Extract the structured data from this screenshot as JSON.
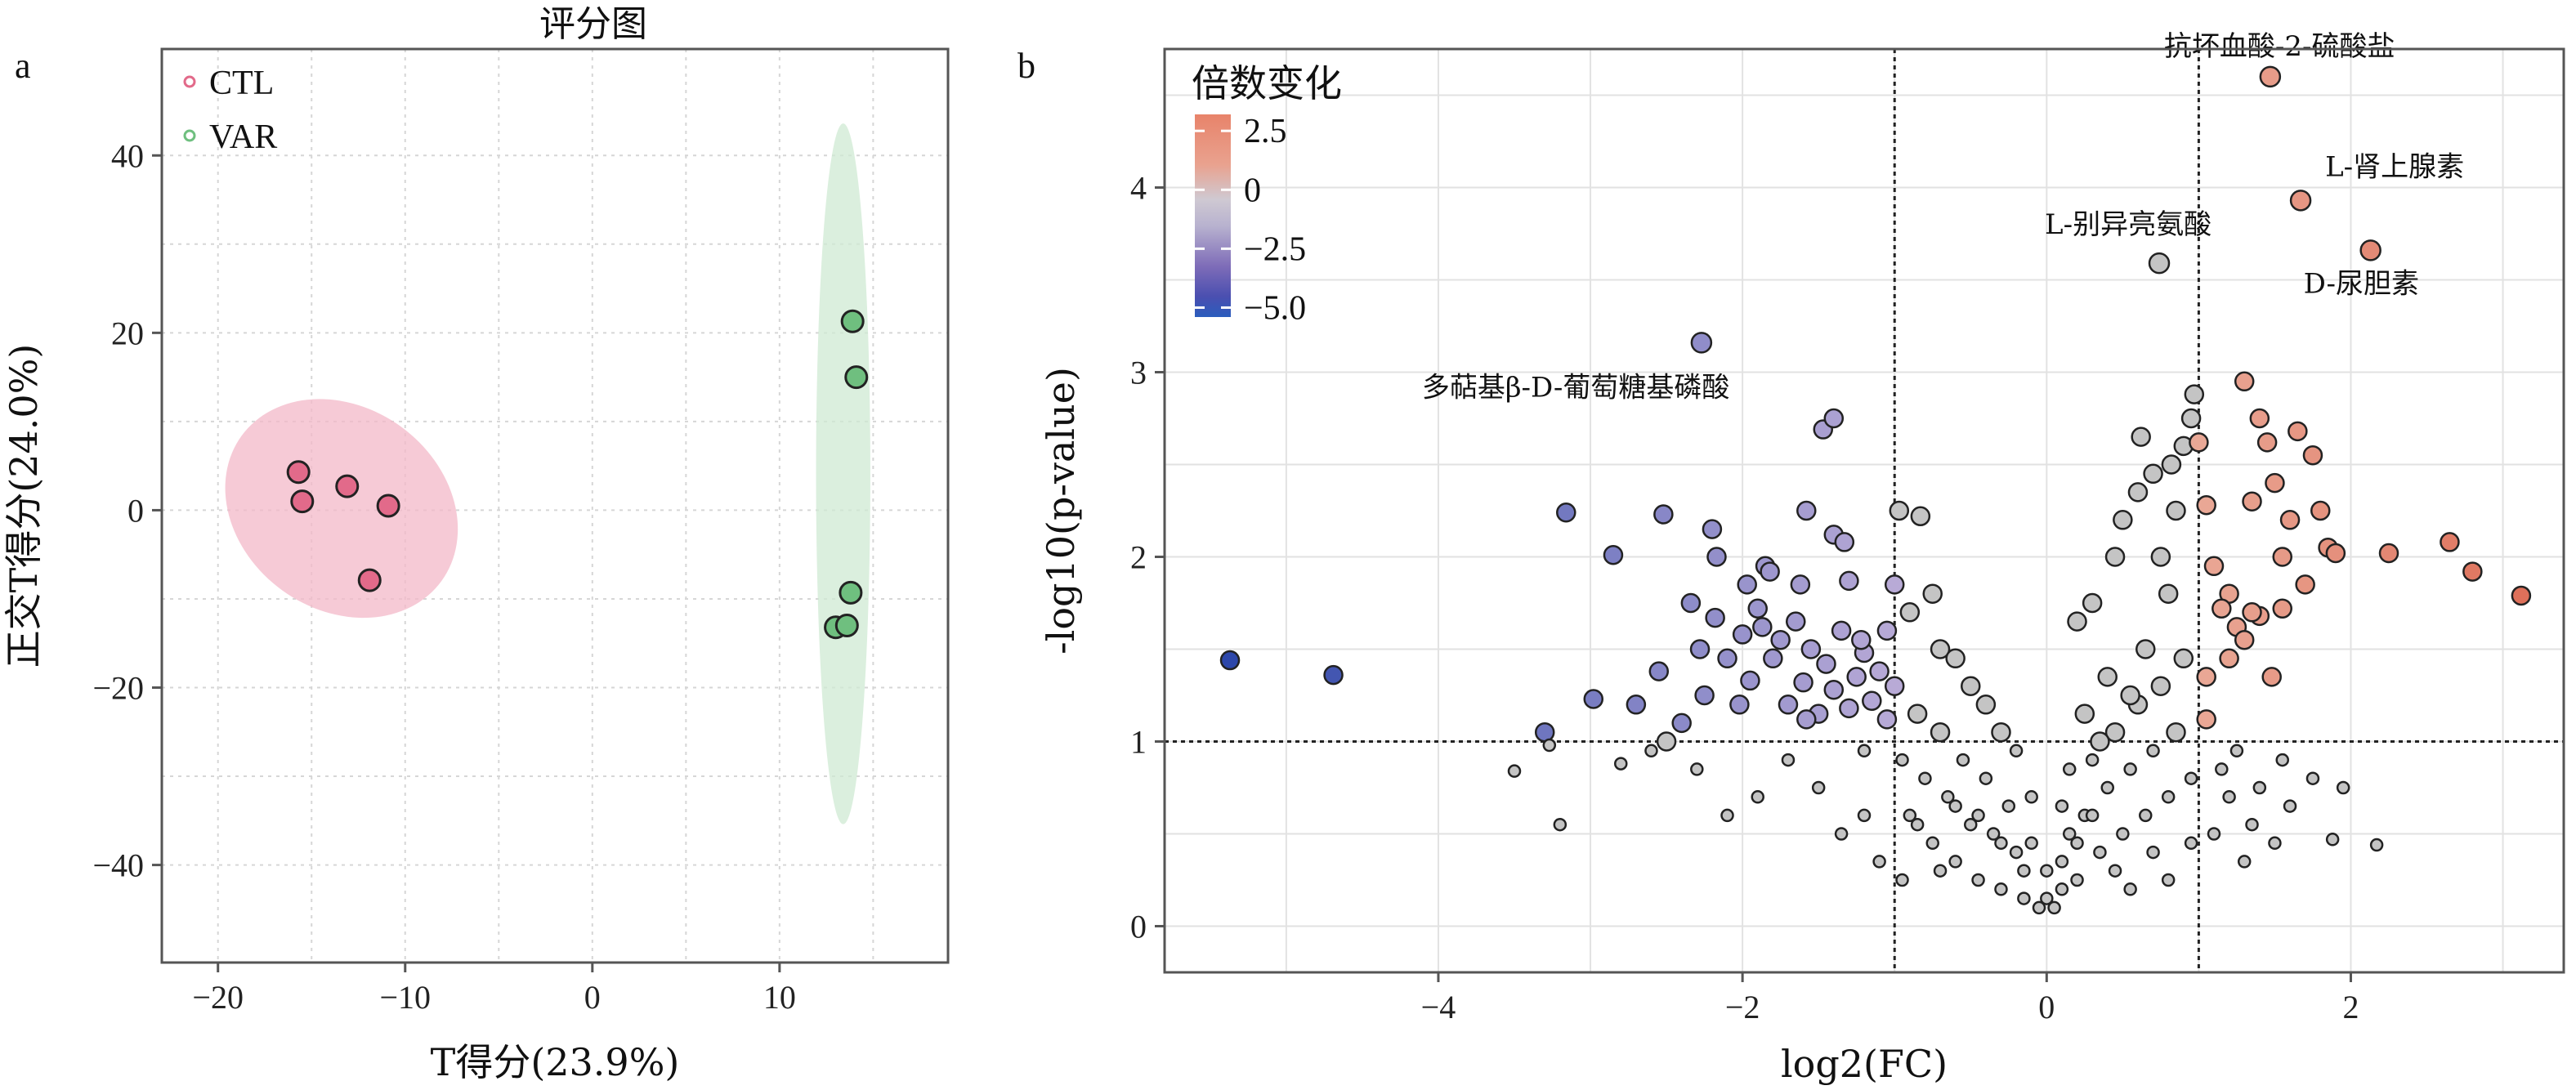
{
  "figure": {
    "panel_a_letter": "a",
    "panel_b_letter": "b"
  },
  "chart_data": [
    {
      "type": "scatter",
      "title": "评分图",
      "xlabel": "T得分(23.9%)",
      "ylabel": "正交T得分(24.0%)",
      "xlim": [
        -23,
        19
      ],
      "ylim": [
        -51,
        52
      ],
      "xticks": [
        -20,
        -10,
        0,
        10
      ],
      "yticks": [
        -40,
        -20,
        0,
        20,
        40
      ],
      "grid": true,
      "legend_position": "top-left",
      "series": [
        {
          "name": "CTL",
          "color": "#e26a8a",
          "ellipse_color": "#f3b8c8",
          "points": [
            [
              -15.7,
              4.3
            ],
            [
              -15.5,
              1.0
            ],
            [
              -13.1,
              2.7
            ],
            [
              -11.9,
              -7.9
            ],
            [
              -10.9,
              0.5
            ]
          ],
          "ellipse": {
            "cx": -13.4,
            "cy": 0.2,
            "rx": 6.6,
            "ry": 11.4,
            "angle_deg": 36
          }
        },
        {
          "name": "VAR",
          "color": "#6fbf7f",
          "ellipse_color": "#cfead3",
          "points": [
            [
              13.9,
              21.3
            ],
            [
              14.1,
              15.0
            ],
            [
              13.8,
              -9.3
            ],
            [
              13.0,
              -13.2
            ],
            [
              13.6,
              -13.0
            ]
          ],
          "ellipse": {
            "cx": 13.4,
            "cy": 4.1,
            "rx": 1.45,
            "ry": 39.5,
            "angle_deg": 0
          }
        }
      ]
    },
    {
      "type": "scatter",
      "title": "",
      "xlabel": "log2(FC)",
      "ylabel": "-log10(p-value)",
      "xlim": [
        -5.8,
        3.4
      ],
      "ylim": [
        -0.25,
        4.75
      ],
      "xticks": [
        -4,
        -2,
        0,
        2
      ],
      "yticks": [
        0,
        1,
        2,
        3,
        4
      ],
      "grid": true,
      "thresholds": {
        "x": [
          -1,
          1
        ],
        "y": 1
      },
      "legend": {
        "title": "倍数变化",
        "labels": [
          "2.5",
          "0",
          "−2.5",
          "−5.0"
        ],
        "values": [
          2.5,
          0,
          -2.5,
          -5.0
        ],
        "position": "top-left",
        "gradient_colors": [
          "#e8836a",
          "#e9a28f",
          "#cfc9d2",
          "#b8b2cf",
          "#7e6cb8",
          "#4a4fb0",
          "#2a5dbd"
        ]
      },
      "annotations": [
        {
          "text": "抗坏血酸-2-硫酸盐",
          "x": 1.47,
          "y": 4.6
        },
        {
          "text": "L-肾上腺素",
          "x": 1.67,
          "y": 3.93
        },
        {
          "text": "L-别异亮氨酸",
          "x": 0.74,
          "y": 3.59
        },
        {
          "text": "D-尿胆素",
          "x": 2.13,
          "y": 3.66
        },
        {
          "text": "多萜基β-D-葡萄糖基磷酸",
          "x": -2.27,
          "y": 3.16
        }
      ],
      "labeled_points": [
        {
          "x": 1.47,
          "y": 4.6,
          "fc": 1.47
        },
        {
          "x": 1.67,
          "y": 3.93,
          "fc": 1.67
        },
        {
          "x": 0.74,
          "y": 3.59,
          "fc": 0.74
        },
        {
          "x": 2.13,
          "y": 3.66,
          "fc": 2.13
        },
        {
          "x": -2.27,
          "y": 3.16,
          "fc": -2.27
        }
      ],
      "points": [
        [
          -5.37,
          1.44
        ],
        [
          -4.69,
          1.36
        ],
        [
          -3.16,
          2.24
        ],
        [
          -2.85,
          2.01
        ],
        [
          -2.52,
          2.23
        ],
        [
          -2.2,
          2.15
        ],
        [
          -2.17,
          2.0
        ],
        [
          -1.97,
          1.85
        ],
        [
          -1.85,
          1.95
        ],
        [
          -1.82,
          1.92
        ],
        [
          -1.62,
          1.85
        ],
        [
          -1.58,
          2.25
        ],
        [
          -1.47,
          2.69
        ],
        [
          -1.4,
          2.75
        ],
        [
          -1.4,
          2.12
        ],
        [
          -1.33,
          2.08
        ],
        [
          -1.3,
          1.87
        ],
        [
          -3.3,
          1.05
        ],
        [
          -2.98,
          1.23
        ],
        [
          -2.7,
          1.2
        ],
        [
          -2.55,
          1.38
        ],
        [
          -2.4,
          1.1
        ],
        [
          -2.28,
          1.5
        ],
        [
          -2.25,
          1.25
        ],
        [
          -2.18,
          1.67
        ],
        [
          -2.1,
          1.45
        ],
        [
          -2.0,
          1.58
        ],
        [
          -1.95,
          1.33
        ],
        [
          -1.9,
          1.72
        ],
        [
          -1.8,
          1.45
        ],
        [
          -1.75,
          1.55
        ],
        [
          -1.7,
          1.2
        ],
        [
          -1.65,
          1.65
        ],
        [
          -1.6,
          1.32
        ],
        [
          -1.55,
          1.5
        ],
        [
          -1.5,
          1.15
        ],
        [
          -1.45,
          1.42
        ],
        [
          -1.4,
          1.28
        ],
        [
          -1.35,
          1.6
        ],
        [
          -1.3,
          1.18
        ],
        [
          -1.25,
          1.35
        ],
        [
          -1.2,
          1.48
        ],
        [
          -1.15,
          1.22
        ],
        [
          -1.1,
          1.38
        ],
        [
          -1.05,
          1.12
        ],
        [
          -2.34,
          1.75
        ],
        [
          -2.02,
          1.2
        ],
        [
          -1.87,
          1.62
        ],
        [
          -1.58,
          1.12
        ],
        [
          -1.22,
          1.55
        ],
        [
          -3.5,
          0.84
        ],
        [
          -3.27,
          0.98
        ],
        [
          -3.2,
          0.55
        ],
        [
          -2.8,
          0.88
        ],
        [
          -2.6,
          0.95
        ],
        [
          -2.5,
          1.0
        ],
        [
          -2.3,
          0.85
        ],
        [
          -2.1,
          0.6
        ],
        [
          -1.9,
          0.7
        ],
        [
          -1.7,
          0.9
        ],
        [
          -1.5,
          0.75
        ],
        [
          -1.35,
          0.5
        ],
        [
          -1.2,
          0.95
        ],
        [
          -1.05,
          1.6
        ],
        [
          -0.97,
          2.25
        ],
        [
          -0.83,
          2.22
        ],
        [
          -1.0,
          1.85
        ],
        [
          -0.9,
          1.7
        ],
        [
          -0.75,
          1.8
        ],
        [
          -0.7,
          1.5
        ],
        [
          -0.6,
          1.45
        ],
        [
          -0.5,
          1.3
        ],
        [
          -0.4,
          1.2
        ],
        [
          -0.3,
          1.05
        ],
        [
          -0.2,
          0.95
        ],
        [
          -0.1,
          0.7
        ],
        [
          0.0,
          0.3
        ],
        [
          0.05,
          0.1
        ],
        [
          0.1,
          0.2
        ],
        [
          0.15,
          0.5
        ],
        [
          -1.0,
          1.3
        ],
        [
          -0.95,
          0.9
        ],
        [
          -0.9,
          0.6
        ],
        [
          -0.85,
          1.15
        ],
        [
          -0.8,
          0.8
        ],
        [
          -0.75,
          0.45
        ],
        [
          -0.7,
          1.05
        ],
        [
          -0.65,
          0.7
        ],
        [
          -0.6,
          0.35
        ],
        [
          -0.55,
          0.9
        ],
        [
          -0.5,
          0.55
        ],
        [
          -0.45,
          0.25
        ],
        [
          -0.4,
          0.8
        ],
        [
          -0.35,
          0.5
        ],
        [
          -0.3,
          0.2
        ],
        [
          -0.25,
          0.65
        ],
        [
          -0.2,
          0.4
        ],
        [
          -0.15,
          0.15
        ],
        [
          -0.1,
          0.45
        ],
        [
          -0.05,
          0.1
        ],
        [
          0.2,
          0.25
        ],
        [
          0.25,
          0.6
        ],
        [
          0.3,
          0.9
        ],
        [
          0.35,
          0.4
        ],
        [
          0.4,
          0.75
        ],
        [
          0.45,
          1.05
        ],
        [
          0.5,
          0.5
        ],
        [
          0.55,
          0.85
        ],
        [
          0.6,
          1.2
        ],
        [
          0.65,
          0.6
        ],
        [
          0.7,
          0.95
        ],
        [
          0.75,
          1.3
        ],
        [
          0.8,
          0.7
        ],
        [
          0.85,
          1.05
        ],
        [
          0.9,
          1.45
        ],
        [
          0.95,
          0.8
        ],
        [
          0.2,
          1.65
        ],
        [
          0.3,
          1.75
        ],
        [
          0.45,
          2.0
        ],
        [
          0.5,
          2.2
        ],
        [
          0.6,
          2.35
        ],
        [
          0.62,
          2.65
        ],
        [
          0.7,
          2.45
        ],
        [
          0.75,
          2.0
        ],
        [
          0.8,
          1.8
        ],
        [
          0.82,
          2.5
        ],
        [
          0.9,
          2.6
        ],
        [
          0.95,
          2.75
        ],
        [
          0.97,
          2.88
        ],
        [
          0.85,
          2.25
        ],
        [
          0.65,
          1.5
        ],
        [
          0.55,
          1.25
        ],
        [
          0.4,
          1.35
        ],
        [
          0.35,
          1.0
        ],
        [
          0.25,
          1.15
        ],
        [
          0.15,
          0.85
        ],
        [
          0.1,
          0.65
        ],
        [
          1.05,
          1.12
        ],
        [
          1.15,
          0.85
        ],
        [
          1.25,
          0.95
        ],
        [
          1.4,
          0.75
        ],
        [
          1.55,
          0.9
        ],
        [
          1.6,
          0.65
        ],
        [
          1.75,
          0.8
        ],
        [
          1.88,
          0.47
        ],
        [
          1.95,
          0.75
        ],
        [
          2.17,
          0.44
        ],
        [
          1.2,
          0.7
        ],
        [
          1.35,
          0.55
        ],
        [
          1.5,
          0.45
        ],
        [
          1.0,
          2.62
        ],
        [
          1.05,
          2.28
        ],
        [
          1.1,
          1.95
        ],
        [
          1.2,
          1.8
        ],
        [
          1.3,
          2.95
        ],
        [
          1.35,
          2.3
        ],
        [
          1.4,
          2.75
        ],
        [
          1.45,
          2.62
        ],
        [
          1.5,
          2.4
        ],
        [
          1.55,
          2.0
        ],
        [
          1.6,
          2.2
        ],
        [
          1.65,
          2.68
        ],
        [
          1.7,
          1.85
        ],
        [
          1.75,
          2.55
        ],
        [
          1.8,
          2.25
        ],
        [
          1.85,
          2.05
        ],
        [
          1.9,
          2.02
        ],
        [
          2.25,
          2.02
        ],
        [
          2.65,
          2.08
        ],
        [
          2.8,
          1.92
        ],
        [
          3.12,
          1.79
        ],
        [
          1.15,
          1.72
        ],
        [
          1.25,
          1.62
        ],
        [
          1.3,
          1.55
        ],
        [
          1.4,
          1.68
        ],
        [
          1.48,
          1.35
        ],
        [
          1.55,
          1.72
        ],
        [
          1.2,
          1.45
        ],
        [
          1.35,
          1.7
        ],
        [
          1.05,
          1.35
        ],
        [
          -1.2,
          0.6
        ],
        [
          -1.1,
          0.35
        ],
        [
          -0.95,
          0.25
        ],
        [
          -0.85,
          0.55
        ],
        [
          -0.7,
          0.3
        ],
        [
          -0.6,
          0.65
        ],
        [
          -0.45,
          0.6
        ],
        [
          -0.3,
          0.45
        ],
        [
          -0.15,
          0.3
        ],
        [
          0.0,
          0.15
        ],
        [
          0.1,
          0.35
        ],
        [
          0.2,
          0.45
        ],
        [
          0.3,
          0.6
        ],
        [
          0.45,
          0.3
        ],
        [
          0.55,
          0.2
        ],
        [
          0.7,
          0.4
        ],
        [
          0.8,
          0.25
        ],
        [
          0.95,
          0.45
        ],
        [
          1.1,
          0.5
        ],
        [
          1.3,
          0.35
        ]
      ]
    }
  ]
}
